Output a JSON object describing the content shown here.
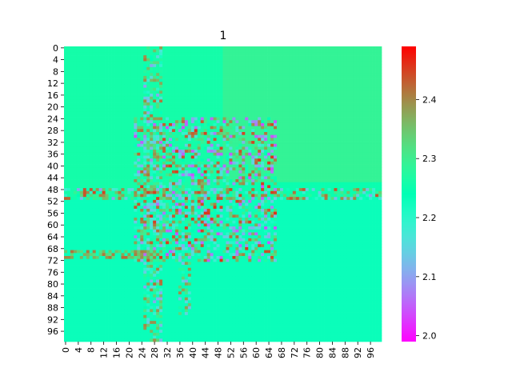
{
  "chart_data": {
    "type": "heatmap",
    "title": "1",
    "xlabel": "",
    "ylabel": "",
    "grid_size": 100,
    "x_tick_labels": [
      "0",
      "4",
      "8",
      "12",
      "16",
      "20",
      "24",
      "28",
      "32",
      "36",
      "40",
      "44",
      "48",
      "52",
      "56",
      "60",
      "64",
      "68",
      "72",
      "76",
      "80",
      "84",
      "88",
      "92",
      "96"
    ],
    "y_tick_labels": [
      "0",
      "4",
      "8",
      "12",
      "16",
      "20",
      "24",
      "28",
      "32",
      "36",
      "40",
      "44",
      "48",
      "52",
      "56",
      "60",
      "64",
      "68",
      "72",
      "76",
      "80",
      "84",
      "88",
      "92",
      "96"
    ],
    "colorbar": {
      "vmin": 1.99,
      "vmax": 2.49,
      "ticks": [
        "2.0",
        "2.1",
        "2.2",
        "2.3",
        "2.4"
      ],
      "tick_values": [
        2.0,
        2.1,
        2.2,
        2.3,
        2.4
      ],
      "colormap": "rainbow"
    },
    "regions": [
      {
        "name": "upper-left background",
        "rows": [
          0,
          50
        ],
        "cols": [
          0,
          49
        ],
        "value": 2.26
      },
      {
        "name": "upper-right background",
        "rows": [
          0,
          45
        ],
        "cols": [
          50,
          99
        ],
        "value": 2.29
      },
      {
        "name": "right band",
        "rows": [
          46,
          50
        ],
        "cols": [
          50,
          99
        ],
        "value": 2.25
      },
      {
        "name": "lower background",
        "rows": [
          51,
          99
        ],
        "cols": [
          0,
          99
        ],
        "value": 2.23
      }
    ],
    "features": [
      {
        "name": "noisy central block",
        "rows": [
          24,
          72
        ],
        "cols": [
          22,
          66
        ],
        "range": [
          2.04,
          2.46
        ]
      },
      {
        "name": "vertical streak",
        "rows": [
          0,
          99
        ],
        "cols": [
          25,
          30
        ],
        "range": [
          2.1,
          2.42
        ]
      },
      {
        "name": "horizontal streak",
        "rows": [
          48,
          51
        ],
        "cols": [
          0,
          99
        ],
        "range": [
          2.1,
          2.45
        ]
      },
      {
        "name": "left horizontal streak",
        "rows": [
          69,
          71
        ],
        "cols": [
          0,
          28
        ],
        "range": [
          2.3,
          2.42
        ]
      },
      {
        "name": "lower vertical streak",
        "rows": [
          70,
          90
        ],
        "cols": [
          36,
          39
        ],
        "range": [
          2.1,
          2.4
        ]
      }
    ]
  }
}
